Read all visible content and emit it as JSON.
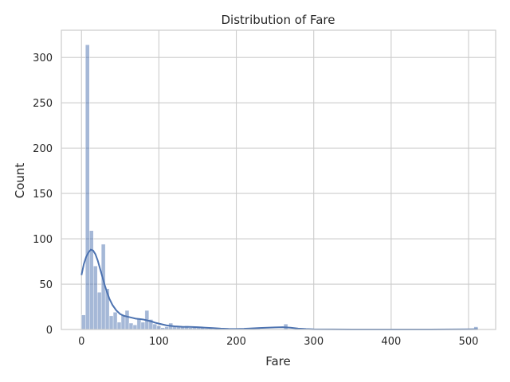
{
  "chart_data": {
    "type": "histogram",
    "title": "Distribution of Fare",
    "xlabel": "Fare",
    "ylabel": "Count",
    "xlim": [
      -26,
      535
    ],
    "ylim": [
      0,
      330
    ],
    "x_ticks": [
      0,
      100,
      200,
      300,
      400,
      500
    ],
    "y_ticks": [
      0,
      50,
      100,
      150,
      200,
      250,
      300
    ],
    "grid": true,
    "bin_width": 5.12,
    "bins": [
      {
        "start": 0.0,
        "count": 16
      },
      {
        "start": 5.12,
        "count": 314
      },
      {
        "start": 10.25,
        "count": 109
      },
      {
        "start": 15.37,
        "count": 70
      },
      {
        "start": 20.49,
        "count": 41
      },
      {
        "start": 25.62,
        "count": 94
      },
      {
        "start": 30.74,
        "count": 45
      },
      {
        "start": 35.86,
        "count": 15
      },
      {
        "start": 40.99,
        "count": 19
      },
      {
        "start": 46.11,
        "count": 8
      },
      {
        "start": 51.23,
        "count": 16
      },
      {
        "start": 56.36,
        "count": 21
      },
      {
        "start": 61.48,
        "count": 7
      },
      {
        "start": 66.6,
        "count": 5
      },
      {
        "start": 71.73,
        "count": 12
      },
      {
        "start": 76.85,
        "count": 8
      },
      {
        "start": 81.97,
        "count": 21
      },
      {
        "start": 87.1,
        "count": 11
      },
      {
        "start": 92.22,
        "count": 6
      },
      {
        "start": 97.34,
        "count": 4
      },
      {
        "start": 102.47,
        "count": 2
      },
      {
        "start": 107.59,
        "count": 3
      },
      {
        "start": 112.71,
        "count": 7
      },
      {
        "start": 117.84,
        "count": 3
      },
      {
        "start": 122.96,
        "count": 3
      },
      {
        "start": 128.08,
        "count": 3
      },
      {
        "start": 133.21,
        "count": 4
      },
      {
        "start": 138.33,
        "count": 2
      },
      {
        "start": 143.45,
        "count": 3
      },
      {
        "start": 148.58,
        "count": 3
      },
      {
        "start": 153.7,
        "count": 2
      },
      {
        "start": 158.82,
        "count": 1
      },
      {
        "start": 163.95,
        "count": 1
      },
      {
        "start": 179.32,
        "count": 1
      },
      {
        "start": 210.06,
        "count": 2
      },
      {
        "start": 215.18,
        "count": 1
      },
      {
        "start": 220.31,
        "count": 2
      },
      {
        "start": 225.43,
        "count": 1
      },
      {
        "start": 261.29,
        "count": 6
      },
      {
        "start": 507.04,
        "count": 3
      }
    ],
    "kde": {
      "x": [
        0,
        3,
        6,
        9,
        12,
        15,
        18,
        21,
        24,
        27,
        30,
        33,
        36,
        40,
        45,
        50,
        55,
        60,
        65,
        70,
        75,
        80,
        85,
        90,
        95,
        100,
        110,
        120,
        130,
        140,
        150,
        160,
        170,
        180,
        190,
        200,
        210,
        220,
        230,
        240,
        250,
        260,
        270,
        280,
        290,
        300,
        350,
        400,
        450,
        500,
        512
      ],
      "y": [
        60,
        72,
        80,
        85,
        88,
        87,
        83,
        76,
        67,
        58,
        49,
        41,
        34,
        27,
        21,
        17,
        15,
        14,
        13,
        12,
        11.5,
        11,
        10,
        9,
        7.5,
        6.5,
        4.5,
        3.5,
        3,
        2.8,
        2.5,
        2,
        1.5,
        1,
        0.7,
        0.6,
        0.8,
        1.2,
        1.6,
        2,
        2.3,
        2.5,
        2,
        1,
        0.5,
        0.2,
        0,
        0,
        0,
        0.2,
        0.3
      ]
    }
  }
}
